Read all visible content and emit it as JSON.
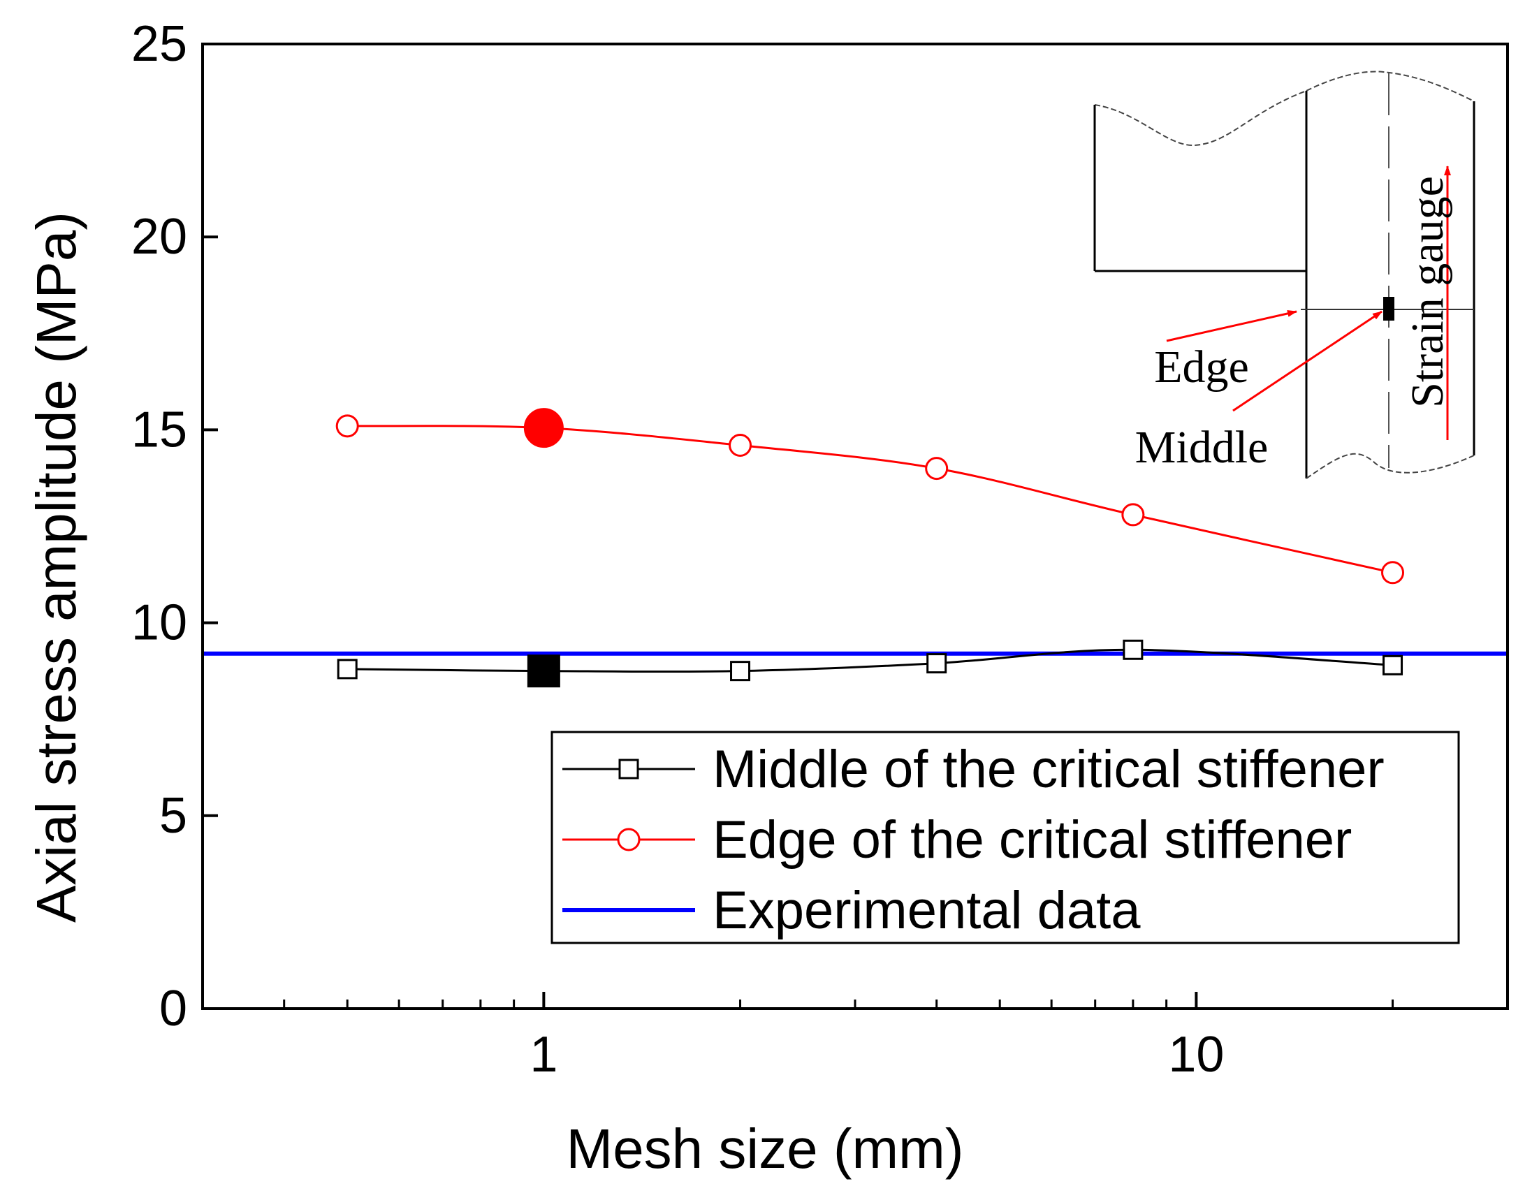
{
  "chart_data": {
    "type": "line",
    "title": "",
    "xlabel": "Mesh size (mm)",
    "ylabel": "Axial stress amplitude (MPa)",
    "xscale": "log",
    "xlim": [
      0.3,
      30
    ],
    "ylim": [
      0,
      25
    ],
    "x_ticks": [
      1,
      10
    ],
    "x_tick_labels": [
      "1",
      "10"
    ],
    "y_ticks": [
      0,
      5,
      10,
      15,
      20,
      25
    ],
    "y_tick_labels": [
      "0",
      "5",
      "10",
      "15",
      "20",
      "25"
    ],
    "x": [
      0.5,
      1,
      2,
      4,
      8,
      20
    ],
    "series": [
      {
        "name": "Middle of the critical stiffener",
        "color": "#000000",
        "marker": "square",
        "values": [
          8.8,
          8.75,
          8.75,
          8.95,
          9.3,
          8.9
        ],
        "highlight_index": 1
      },
      {
        "name": "Edge of the critical stiffener",
        "color": "#ff0000",
        "marker": "circle",
        "values": [
          15.1,
          15.05,
          14.6,
          14.0,
          12.8,
          11.3
        ],
        "highlight_index": 1
      }
    ],
    "reference_line": {
      "name": "Experimental data",
      "color": "#0000ff",
      "value": 9.2
    },
    "legend": {
      "placement": "lower-right",
      "entries": [
        "Middle of the critical stiffener",
        "Edge of the critical stiffener",
        "Experimental data"
      ]
    },
    "inset": {
      "placement": "top-right",
      "labels": {
        "edge": "Edge",
        "middle": "Middle",
        "gauge": "Strain gauge"
      },
      "arrow_color": "#ff0000"
    }
  }
}
